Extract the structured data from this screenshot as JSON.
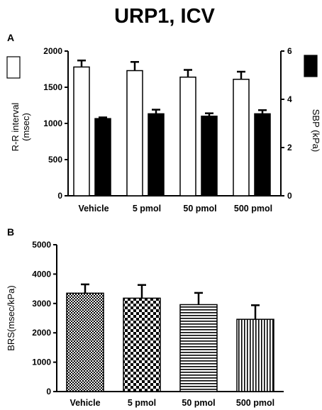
{
  "figure": {
    "title": "URP1, ICV"
  },
  "chart_data": [
    {
      "panel": "A",
      "type": "bar",
      "categories": [
        "Vehicle",
        "5 pmol",
        "50 pmol",
        "500 pmol"
      ],
      "series": [
        {
          "axis": "left",
          "color": "#ffffff",
          "values": [
            1780,
            1730,
            1640,
            1610
          ],
          "errors": [
            90,
            120,
            100,
            105
          ]
        },
        {
          "axis": "right",
          "color": "#000000",
          "values": [
            3.2,
            3.4,
            3.3,
            3.4
          ],
          "errors": [
            0.05,
            0.17,
            0.12,
            0.15
          ]
        }
      ],
      "ylabel": "R-R interval\n(msec)",
      "ylabel_lines": [
        "R-R interval",
        "(msec)"
      ],
      "ylim": [
        0,
        2000
      ],
      "yticks": [
        0,
        500,
        1000,
        1500,
        2000
      ],
      "y2label": "SBP (kPa)",
      "y2lim": [
        0,
        6
      ],
      "y2ticks": [
        0,
        2,
        4,
        6
      ],
      "legend": [
        "white-box",
        "black-box"
      ],
      "grid": false
    },
    {
      "panel": "B",
      "type": "bar",
      "categories": [
        "Vehicle",
        "5 pmol",
        "50 pmol",
        "500 pmol"
      ],
      "series": [
        {
          "values": [
            3350,
            3180,
            2960,
            2460
          ],
          "errors": [
            300,
            450,
            400,
            480
          ],
          "patterns": [
            "checker-fine",
            "checker-coarse",
            "horizontal-lines",
            "vertical-lines"
          ]
        }
      ],
      "ylabel": "BRS(msec/kPa)",
      "ylim": [
        0,
        5000
      ],
      "yticks": [
        0,
        1000,
        2000,
        3000,
        4000,
        5000
      ],
      "grid": false
    }
  ]
}
